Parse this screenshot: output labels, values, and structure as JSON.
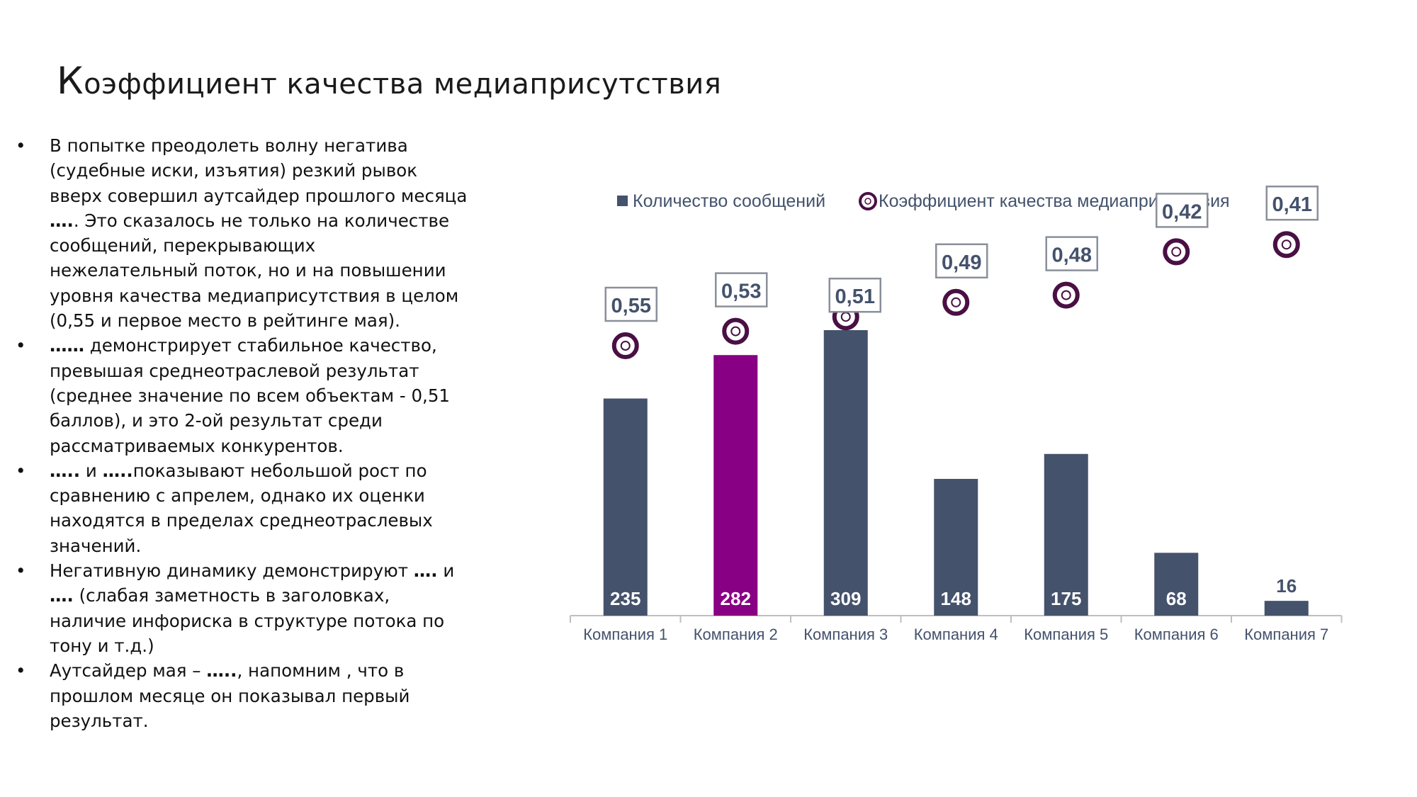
{
  "title": {
    "first_letter": "К",
    "rest": "оэффициент качества медиаприсутствия"
  },
  "bullets": [
    [
      {
        "t": "В попытке преодолеть волну негатива (судебные иски, изъятия) резкий рывок вверх совершил аутсайдер прошлого месяца "
      },
      {
        "t": "….",
        "b": true
      },
      {
        "t": ". Это сказалось не только на количестве сообщений, перекрывающих нежелательный поток, но и на повышении уровня качества медиаприсутствия в целом (0,55 и первое место в рейтинге мая)."
      }
    ],
    [
      {
        "t": "……",
        "b": true
      },
      {
        "t": " демонстрирует стабильное качество, превышая среднеотраслевой результат (среднее значение по всем объектам - 0,51 баллов), и это 2-ой результат среди рассматриваемых конкурентов."
      }
    ],
    [
      {
        "t": "…..",
        "b": true
      },
      {
        "t": " и "
      },
      {
        "t": "…..",
        "b": true
      },
      {
        "t": "показывают небольшой рост по сравнению с апрелем, однако их оценки находятся в пределах среднеотраслевых значений."
      }
    ],
    [
      {
        "t": "Негативную динамику демонстрируют "
      },
      {
        "t": "….",
        "b": true
      },
      {
        "t": " и "
      },
      {
        "t": "….",
        "b": true
      },
      {
        "t": " (слабая заметность в заголовках, наличие инфориска в структуре потока по тону и т.д.)"
      }
    ],
    [
      {
        "t": "Аутсайдер мая – "
      },
      {
        "t": "…..",
        "b": true
      },
      {
        "t": ", напомним , что в прошлом месяце он показывал первый результат."
      }
    ]
  ],
  "chart_data": {
    "type": "bar",
    "title": "",
    "categories": [
      "Компания 1",
      "Компания 2",
      "Компания 3",
      "Компания 4",
      "Компания 5",
      "Компания 6",
      "Компания 7"
    ],
    "series": [
      {
        "name": "Количество сообщений",
        "kind": "bar",
        "axis": "left",
        "values": [
          235,
          282,
          309,
          148,
          175,
          68,
          16
        ],
        "labels": [
          "235",
          "282",
          "309",
          "148",
          "175",
          "68",
          "16"
        ]
      },
      {
        "name": "Коэффициент качества медиаприсутствия",
        "kind": "marker",
        "axis": "right",
        "values": [
          0.55,
          0.53,
          0.51,
          0.49,
          0.48,
          0.42,
          0.41
        ],
        "labels": [
          "0,55",
          "0,53",
          "0,51",
          "0,49",
          "0,48",
          "0,42",
          "0,41"
        ]
      }
    ],
    "legend_position": "top",
    "grid": false,
    "highlight_index": 1,
    "colors": {
      "bar": "#44526c",
      "highlight": "#880083",
      "marker": "#4a0f44",
      "text": "#44526c",
      "axis": "#bfbfbf"
    }
  }
}
